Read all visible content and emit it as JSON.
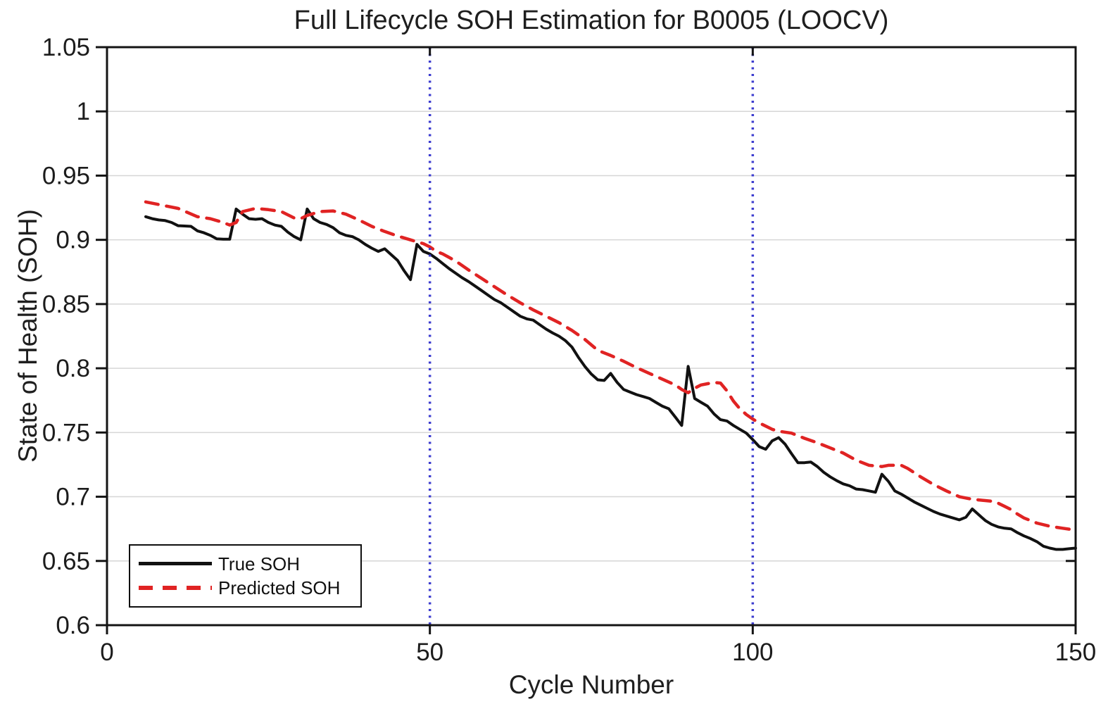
{
  "chart_data": {
    "type": "line",
    "title": "Full Lifecycle SOH Estimation for B0005 (LOOCV)",
    "xlabel": "Cycle Number",
    "ylabel": "State of Health (SOH)",
    "xlim": [
      0,
      150
    ],
    "ylim": [
      0.6,
      1.05
    ],
    "xticks": [
      0,
      50,
      100,
      150
    ],
    "xtick_labels": [
      "0",
      "50",
      "100",
      "150"
    ],
    "yticks": [
      0.6,
      0.65,
      0.7,
      0.75,
      0.8,
      0.85,
      0.9,
      0.95,
      1,
      1.05
    ],
    "ytick_labels": [
      "0.6",
      "0.65",
      "0.7",
      "0.75",
      "0.8",
      "0.85",
      "0.9",
      "0.95",
      "1",
      "1.05"
    ],
    "grid": "y-only",
    "grid_color": "#d6d6d6",
    "axis_color": "#141414",
    "text_color": "#1c1c1c",
    "background": "#ffffff",
    "legend_position": "lower-left",
    "vertical_markers": {
      "x": [
        50,
        100
      ],
      "color": "#3c3ccf",
      "style": "dotted"
    },
    "series": [
      {
        "name": "True SOH",
        "color": "#111111",
        "style": "solid",
        "width": 4,
        "points": [
          [
            6,
            0.918
          ],
          [
            7,
            0.9165
          ],
          [
            8,
            0.9155
          ],
          [
            9,
            0.915
          ],
          [
            10,
            0.9135
          ],
          [
            11,
            0.911
          ],
          [
            12,
            0.9108
          ],
          [
            13,
            0.9105
          ],
          [
            14,
            0.907
          ],
          [
            15,
            0.9055
          ],
          [
            16,
            0.9035
          ],
          [
            17,
            0.9008
          ],
          [
            18,
            0.9005
          ],
          [
            19,
            0.9005
          ],
          [
            20,
            0.924
          ],
          [
            21,
            0.92
          ],
          [
            22,
            0.9165
          ],
          [
            23,
            0.916
          ],
          [
            24,
            0.9165
          ],
          [
            25,
            0.9135
          ],
          [
            26,
            0.9115
          ],
          [
            27,
            0.9105
          ],
          [
            28,
            0.906
          ],
          [
            29,
            0.9025
          ],
          [
            30,
            0.9
          ],
          [
            31,
            0.924
          ],
          [
            32,
            0.9165
          ],
          [
            33,
            0.9135
          ],
          [
            34,
            0.912
          ],
          [
            35,
            0.9095
          ],
          [
            36,
            0.9055
          ],
          [
            37,
            0.9035
          ],
          [
            38,
            0.9025
          ],
          [
            39,
            0.9
          ],
          [
            40,
            0.8965
          ],
          [
            41,
            0.8935
          ],
          [
            42,
            0.891
          ],
          [
            43,
            0.893
          ],
          [
            44,
            0.8885
          ],
          [
            45,
            0.884
          ],
          [
            46,
            0.876
          ],
          [
            47,
            0.869
          ],
          [
            48,
            0.8965
          ],
          [
            49,
            0.891
          ],
          [
            50,
            0.889
          ],
          [
            51,
            0.8855
          ],
          [
            52,
            0.8815
          ],
          [
            53,
            0.8775
          ],
          [
            54,
            0.874
          ],
          [
            55,
            0.8705
          ],
          [
            56,
            0.8675
          ],
          [
            57,
            0.864
          ],
          [
            58,
            0.8605
          ],
          [
            59,
            0.857
          ],
          [
            60,
            0.8535
          ],
          [
            61,
            0.851
          ],
          [
            62,
            0.8475
          ],
          [
            63,
            0.844
          ],
          [
            64,
            0.8405
          ],
          [
            65,
            0.8385
          ],
          [
            66,
            0.8375
          ],
          [
            67,
            0.834
          ],
          [
            68,
            0.8305
          ],
          [
            69,
            0.8275
          ],
          [
            70,
            0.825
          ],
          [
            71,
            0.8215
          ],
          [
            72,
            0.8165
          ],
          [
            73,
            0.8085
          ],
          [
            74,
            0.8015
          ],
          [
            75,
            0.7955
          ],
          [
            76,
            0.791
          ],
          [
            77,
            0.7905
          ],
          [
            78,
            0.796
          ],
          [
            79,
            0.789
          ],
          [
            80,
            0.7835
          ],
          [
            81,
            0.7815
          ],
          [
            82,
            0.7795
          ],
          [
            83,
            0.778
          ],
          [
            84,
            0.7765
          ],
          [
            85,
            0.7735
          ],
          [
            86,
            0.7705
          ],
          [
            87,
            0.7685
          ],
          [
            88,
            0.762
          ],
          [
            89,
            0.7555
          ],
          [
            90,
            0.8015
          ],
          [
            91,
            0.7765
          ],
          [
            92,
            0.7735
          ],
          [
            93,
            0.7705
          ],
          [
            94,
            0.7645
          ],
          [
            95,
            0.76
          ],
          [
            96,
            0.759
          ],
          [
            97,
            0.7555
          ],
          [
            98,
            0.7525
          ],
          [
            99,
            0.7495
          ],
          [
            100,
            0.7445
          ],
          [
            101,
            0.739
          ],
          [
            102,
            0.737
          ],
          [
            103,
            0.7435
          ],
          [
            104,
            0.746
          ],
          [
            105,
            0.741
          ],
          [
            106,
            0.7335
          ],
          [
            107,
            0.7265
          ],
          [
            108,
            0.7265
          ],
          [
            109,
            0.727
          ],
          [
            110,
            0.7235
          ],
          [
            111,
            0.719
          ],
          [
            112,
            0.7155
          ],
          [
            113,
            0.7125
          ],
          [
            114,
            0.71
          ],
          [
            115,
            0.7085
          ],
          [
            116,
            0.706
          ],
          [
            117,
            0.7055
          ],
          [
            118,
            0.7045
          ],
          [
            119,
            0.7035
          ],
          [
            120,
            0.7175
          ],
          [
            121,
            0.712
          ],
          [
            122,
            0.7045
          ],
          [
            123,
            0.702
          ],
          [
            124,
            0.699
          ],
          [
            125,
            0.696
          ],
          [
            126,
            0.6935
          ],
          [
            127,
            0.691
          ],
          [
            128,
            0.6885
          ],
          [
            129,
            0.6865
          ],
          [
            130,
            0.685
          ],
          [
            131,
            0.6835
          ],
          [
            132,
            0.682
          ],
          [
            133,
            0.684
          ],
          [
            134,
            0.6905
          ],
          [
            135,
            0.686
          ],
          [
            136,
            0.6815
          ],
          [
            137,
            0.6785
          ],
          [
            138,
            0.6765
          ],
          [
            139,
            0.6755
          ],
          [
            140,
            0.675
          ],
          [
            141,
            0.672
          ],
          [
            142,
            0.6695
          ],
          [
            143,
            0.6675
          ],
          [
            144,
            0.665
          ],
          [
            145,
            0.6615
          ],
          [
            146,
            0.66
          ],
          [
            147,
            0.659
          ],
          [
            148,
            0.659
          ],
          [
            149,
            0.6595
          ],
          [
            150,
            0.66
          ]
        ]
      },
      {
        "name": "Predicted SOH",
        "color": "#e02323",
        "style": "dashed",
        "width": 4.5,
        "points": [
          [
            6,
            0.9295
          ],
          [
            8,
            0.9275
          ],
          [
            11,
            0.9245
          ],
          [
            14,
            0.918
          ],
          [
            16,
            0.9165
          ],
          [
            18,
            0.9135
          ],
          [
            19,
            0.9115
          ],
          [
            20,
            0.9135
          ],
          [
            21,
            0.922
          ],
          [
            23,
            0.9245
          ],
          [
            25,
            0.9235
          ],
          [
            27,
            0.922
          ],
          [
            29,
            0.917
          ],
          [
            30,
            0.9165
          ],
          [
            31,
            0.919
          ],
          [
            33,
            0.922
          ],
          [
            35,
            0.9225
          ],
          [
            37,
            0.92
          ],
          [
            39,
            0.9155
          ],
          [
            41,
            0.9105
          ],
          [
            43,
            0.9065
          ],
          [
            45,
            0.903
          ],
          [
            47,
            0.9
          ],
          [
            49,
            0.897
          ],
          [
            50,
            0.8945
          ],
          [
            51,
            0.891
          ],
          [
            52,
            0.889
          ],
          [
            54,
            0.8835
          ],
          [
            56,
            0.8765
          ],
          [
            58,
            0.87
          ],
          [
            60,
            0.8635
          ],
          [
            62,
            0.857
          ],
          [
            64,
            0.851
          ],
          [
            66,
            0.8455
          ],
          [
            68,
            0.8405
          ],
          [
            70,
            0.8355
          ],
          [
            72,
            0.8295
          ],
          [
            74,
            0.8225
          ],
          [
            76,
            0.814
          ],
          [
            78,
            0.81
          ],
          [
            80,
            0.8055
          ],
          [
            82,
            0.8005
          ],
          [
            84,
            0.796
          ],
          [
            86,
            0.7915
          ],
          [
            88,
            0.787
          ],
          [
            89,
            0.7835
          ],
          [
            90,
            0.781
          ],
          [
            91,
            0.7845
          ],
          [
            92,
            0.787
          ],
          [
            94,
            0.789
          ],
          [
            95,
            0.7885
          ],
          [
            96,
            0.7825
          ],
          [
            97,
            0.7745
          ],
          [
            98,
            0.7685
          ],
          [
            99,
            0.764
          ],
          [
            100,
            0.7605
          ],
          [
            101,
            0.7575
          ],
          [
            102,
            0.755
          ],
          [
            103,
            0.7525
          ],
          [
            104,
            0.751
          ],
          [
            106,
            0.7495
          ],
          [
            108,
            0.7455
          ],
          [
            110,
            0.742
          ],
          [
            112,
            0.738
          ],
          [
            114,
            0.734
          ],
          [
            116,
            0.7285
          ],
          [
            118,
            0.7245
          ],
          [
            120,
            0.7235
          ],
          [
            121,
            0.7245
          ],
          [
            123,
            0.7245
          ],
          [
            124,
            0.722
          ],
          [
            126,
            0.7155
          ],
          [
            128,
            0.7095
          ],
          [
            130,
            0.7045
          ],
          [
            132,
            0.7
          ],
          [
            134,
            0.698
          ],
          [
            136,
            0.697
          ],
          [
            137,
            0.6965
          ],
          [
            138,
            0.695
          ],
          [
            139,
            0.6925
          ],
          [
            140,
            0.69
          ],
          [
            141,
            0.6865
          ],
          [
            142,
            0.6835
          ],
          [
            144,
            0.6795
          ],
          [
            146,
            0.677
          ],
          [
            148,
            0.6755
          ],
          [
            150,
            0.674
          ]
        ]
      }
    ]
  }
}
